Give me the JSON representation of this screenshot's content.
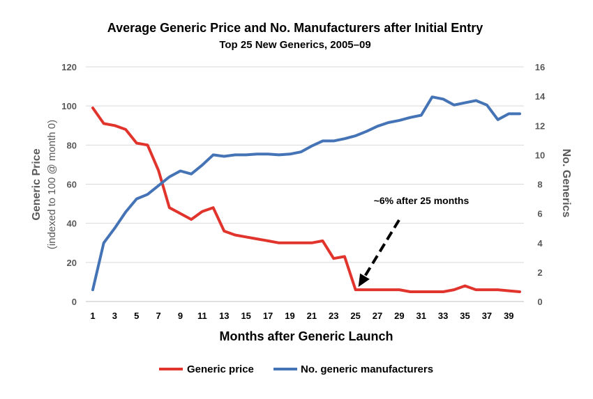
{
  "chart_data": {
    "type": "line",
    "title": "Average Generic Price and No. Manufacturers after Initial Entry",
    "subtitle": "Top 25 New Generics, 2005–09",
    "xlabel": "Months after Generic Launch",
    "ylabel_left_line1": "Generic Price",
    "ylabel_left_line2": "(indexed to 100 @ month 0)",
    "ylabel_right": "No. Generics",
    "x": [
      1,
      2,
      3,
      4,
      5,
      6,
      7,
      8,
      9,
      10,
      11,
      12,
      13,
      14,
      15,
      16,
      17,
      18,
      19,
      20,
      21,
      22,
      23,
      24,
      25,
      26,
      27,
      28,
      29,
      30,
      31,
      32,
      33,
      34,
      35,
      36,
      37,
      38,
      39,
      40
    ],
    "x_tick_labels": [
      "1",
      "3",
      "5",
      "7",
      "9",
      "11",
      "13",
      "15",
      "17",
      "19",
      "21",
      "23",
      "25",
      "27",
      "29",
      "31",
      "33",
      "35",
      "37",
      "39"
    ],
    "ylim_left": [
      0,
      120
    ],
    "y_left_ticks": [
      "0",
      "20",
      "40",
      "60",
      "80",
      "100",
      "120"
    ],
    "ylim_right": [
      0,
      16
    ],
    "y_right_ticks": [
      "0",
      "2",
      "4",
      "6",
      "8",
      "10",
      "12",
      "14",
      "16"
    ],
    "grid": "horizontal",
    "legend_position": "bottom",
    "series": [
      {
        "name": "Generic price",
        "axis": "left",
        "color": "#e0342c",
        "values": [
          99,
          91,
          90,
          88,
          81,
          80,
          67,
          48,
          45,
          42,
          46,
          48,
          36,
          34,
          33,
          32,
          31,
          30,
          30,
          30,
          30,
          31,
          22,
          23,
          6,
          6,
          6,
          6,
          6,
          5,
          5,
          5,
          5,
          6,
          8,
          6,
          6,
          6,
          5.5,
          5
        ]
      },
      {
        "name": "No. generic manufacturers",
        "axis": "right",
        "color": "#4473b6",
        "values": [
          0.8,
          4.0,
          5.0,
          6.1,
          7.0,
          7.3,
          7.9,
          8.5,
          8.9,
          8.7,
          9.3,
          10.0,
          9.9,
          10.0,
          10.0,
          10.05,
          10.05,
          10.0,
          10.05,
          10.2,
          10.6,
          10.95,
          10.95,
          11.1,
          11.3,
          11.6,
          11.95,
          12.2,
          12.35,
          12.55,
          12.7,
          13.95,
          13.8,
          13.4,
          13.55,
          13.7,
          13.4,
          12.4,
          12.8,
          12.8
        ]
      }
    ],
    "annotation": {
      "text": "~6% after 25 months",
      "x": 25,
      "y": 6
    }
  }
}
